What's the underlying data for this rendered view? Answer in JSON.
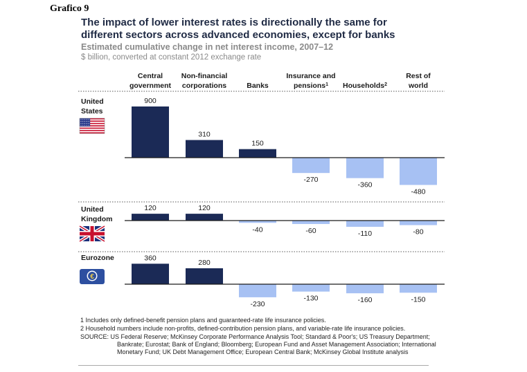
{
  "page_label": "Grafico 9",
  "colors": {
    "positive": "#1b2a56",
    "negative": "#a7c1f3",
    "baseline": "#1a1a1a"
  },
  "chart_data": {
    "type": "bar",
    "title": "The impact of lower interest rates is directionally the same for different sectors across advanced economies, except for banks",
    "subtitle": "Estimated cumulative change in net interest income, 2007–12",
    "unit_label": "$ billion, converted at constant 2012 exchange rate",
    "categories": [
      {
        "line1": "Central",
        "line2": "government",
        "sup": ""
      },
      {
        "line1": "Non-financial",
        "line2": "corporations",
        "sup": ""
      },
      {
        "line1": "",
        "line2": "Banks",
        "sup": ""
      },
      {
        "line1": "Insurance and",
        "line2": "pensions",
        "sup": "1"
      },
      {
        "line1": "",
        "line2": "Households",
        "sup": "2"
      },
      {
        "line1": "Rest of",
        "line2": "world",
        "sup": ""
      }
    ],
    "series": [
      {
        "name": "United States",
        "label_lines": [
          "United",
          "States"
        ],
        "flag": "us-flag-icon",
        "values": [
          900,
          310,
          150,
          -270,
          -360,
          -480
        ]
      },
      {
        "name": "United Kingdom",
        "label_lines": [
          "United",
          "Kingdom"
        ],
        "flag": "uk-flag-icon",
        "values": [
          120,
          120,
          -40,
          -60,
          -110,
          -80
        ]
      },
      {
        "name": "Eurozone",
        "label_lines": [
          "Eurozone"
        ],
        "flag": "euro-flag-icon",
        "values": [
          360,
          280,
          -230,
          -130,
          -160,
          -150
        ]
      }
    ]
  },
  "footnotes": [
    "1  Includes only defined-benefit pension plans and guaranteed-rate life insurance policies.",
    "2  Household numbers include non-profits, defined-contribution pension plans, and variable-rate life insurance policies."
  ],
  "source": "SOURCE: US Federal Reserve; McKinsey Corporate Performance Analysis Tool; Standard & Poor's; US Treasury Department; Bankrate; Eurostat; Bank of England; Bloomberg; European Fund and Asset Management Association; International Monetary Fund; UK Debt Management Office; European Central Bank; McKinsey Global Institute analysis"
}
